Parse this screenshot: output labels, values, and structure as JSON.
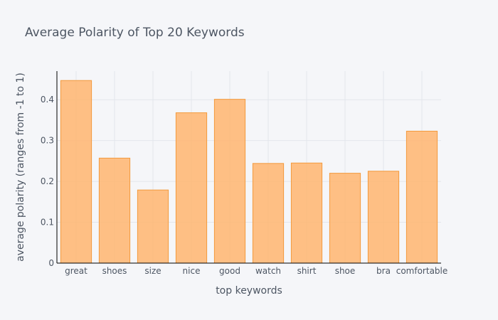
{
  "chart_data": {
    "type": "bar",
    "title": "Average Polarity of Top 20 Keywords",
    "xlabel": "top keywords",
    "ylabel": "average polarity (ranges from -1 to 1)",
    "categories": [
      "great",
      "shoes",
      "size",
      "nice",
      "good",
      "watch",
      "shirt",
      "shoe",
      "bra",
      "comfortable"
    ],
    "values": [
      0.447,
      0.257,
      0.179,
      0.368,
      0.401,
      0.244,
      0.245,
      0.22,
      0.225,
      0.323
    ],
    "ylim": [
      0,
      0.47
    ],
    "yticks": [
      0,
      0.1,
      0.2,
      0.3,
      0.4
    ],
    "ytick_labels": [
      "0",
      "0.1",
      "0.2",
      "0.3",
      "0.4"
    ],
    "grid": true,
    "legend": "none",
    "colors": {
      "bar_fill": "#ffb570",
      "bar_edge": "#f39a3d",
      "background": "#f5f6f9",
      "grid": "#e3e6ec",
      "text": "#4d5663"
    }
  }
}
